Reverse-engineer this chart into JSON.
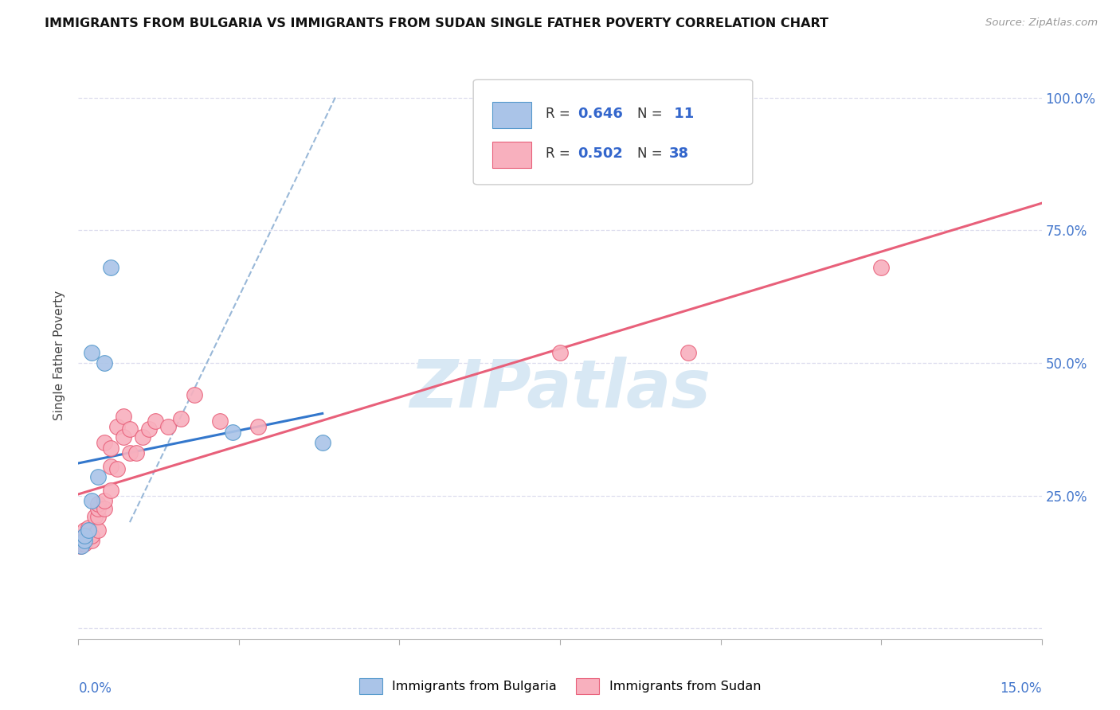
{
  "title": "IMMIGRANTS FROM BULGARIA VS IMMIGRANTS FROM SUDAN SINGLE FATHER POVERTY CORRELATION CHART",
  "source": "Source: ZipAtlas.com",
  "ylabel": "Single Father Poverty",
  "ytick_values": [
    0,
    0.25,
    0.5,
    0.75,
    1.0
  ],
  "ytick_labels_right": [
    "",
    "25.0%",
    "50.0%",
    "75.0%",
    "100.0%"
  ],
  "xlim": [
    0,
    0.15
  ],
  "ylim": [
    -0.02,
    1.05
  ],
  "legend_label1": "Immigrants from Bulgaria",
  "legend_label2": "Immigrants from Sudan",
  "R1": "0.646",
  "N1": "11",
  "R2": "0.502",
  "N2": "38",
  "color_bulgaria_fill": "#aac4e8",
  "color_bulgaria_edge": "#5599cc",
  "color_sudan_fill": "#f8b0be",
  "color_sudan_edge": "#e8607a",
  "color_line_bulgaria": "#3377cc",
  "color_line_sudan": "#e8607a",
  "color_dashed": "#99b8d8",
  "watermark_text": "ZIPatlas",
  "watermark_color": "#d8e8f4",
  "grid_color": "#ddddee",
  "bulgaria_x": [
    0.0005,
    0.001,
    0.001,
    0.0015,
    0.002,
    0.002,
    0.003,
    0.004,
    0.005,
    0.024,
    0.038
  ],
  "bulgaria_y": [
    0.155,
    0.165,
    0.175,
    0.185,
    0.24,
    0.52,
    0.285,
    0.5,
    0.68,
    0.37,
    0.35
  ],
  "sudan_x": [
    0.0003,
    0.0005,
    0.0007,
    0.001,
    0.001,
    0.001,
    0.0015,
    0.0015,
    0.002,
    0.002,
    0.0025,
    0.003,
    0.003,
    0.003,
    0.003,
    0.004,
    0.004,
    0.004,
    0.005,
    0.005,
    0.005,
    0.006,
    0.006,
    0.007,
    0.007,
    0.008,
    0.008,
    0.009,
    0.01,
    0.011,
    0.012,
    0.014,
    0.016,
    0.018,
    0.022,
    0.028,
    0.095,
    0.125
  ],
  "sudan_y": [
    0.155,
    0.16,
    0.165,
    0.16,
    0.175,
    0.185,
    0.175,
    0.19,
    0.165,
    0.175,
    0.21,
    0.185,
    0.21,
    0.225,
    0.235,
    0.225,
    0.24,
    0.35,
    0.26,
    0.305,
    0.34,
    0.3,
    0.38,
    0.36,
    0.4,
    0.33,
    0.375,
    0.33,
    0.36,
    0.375,
    0.39,
    0.38,
    0.395,
    0.44,
    0.39,
    0.38,
    0.52,
    0.68
  ],
  "sudan_outlier_x": [
    0.075
  ],
  "sudan_outlier_y": [
    0.52
  ],
  "bulgaria_line_x": [
    0.0,
    0.038
  ],
  "sudan_line_x": [
    0.0,
    0.15
  ],
  "dashed_line_x": [
    0.008,
    0.04
  ],
  "dashed_line_y": [
    0.2,
    1.0
  ]
}
